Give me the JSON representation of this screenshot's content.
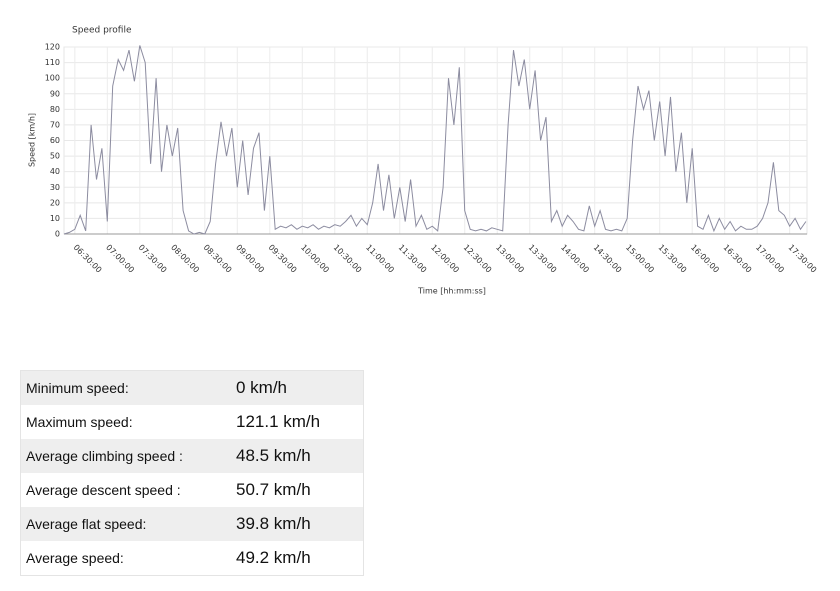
{
  "chart_data": {
    "type": "line",
    "title": "Speed profile",
    "ylabel": "Speed [km/h]",
    "xlabel": "Time [hh:mm:ss]",
    "color": "#8c8ca0",
    "grid": true,
    "xlim": [
      "06:20:00",
      "17:46:00"
    ],
    "xticks": [
      "06:30:00",
      "07:00:00",
      "07:30:00",
      "08:00:00",
      "08:30:00",
      "09:00:00",
      "09:30:00",
      "10:00:00",
      "10:30:00",
      "11:00:00",
      "11:30:00",
      "12:00:00",
      "12:30:00",
      "13:00:00",
      "13:30:00",
      "14:00:00",
      "14:30:00",
      "15:00:00",
      "15:30:00",
      "16:00:00",
      "16:30:00",
      "17:00:00",
      "17:30:00"
    ],
    "ylim": [
      0,
      120
    ],
    "yticks": [
      0,
      10,
      20,
      30,
      40,
      50,
      60,
      70,
      80,
      90,
      100,
      110,
      120
    ],
    "x": [
      "06:20:00",
      "06:25:00",
      "06:30:00",
      "06:35:00",
      "06:40:00",
      "06:45:00",
      "06:50:00",
      "06:55:00",
      "07:00:00",
      "07:05:00",
      "07:10:00",
      "07:15:00",
      "07:20:00",
      "07:25:00",
      "07:30:00",
      "07:35:00",
      "07:40:00",
      "07:45:00",
      "07:50:00",
      "07:55:00",
      "08:00:00",
      "08:05:00",
      "08:10:00",
      "08:15:00",
      "08:20:00",
      "08:25:00",
      "08:30:00",
      "08:35:00",
      "08:40:00",
      "08:45:00",
      "08:50:00",
      "08:55:00",
      "09:00:00",
      "09:05:00",
      "09:10:00",
      "09:15:00",
      "09:20:00",
      "09:25:00",
      "09:30:00",
      "09:35:00",
      "09:40:00",
      "09:45:00",
      "09:50:00",
      "09:55:00",
      "10:00:00",
      "10:05:00",
      "10:10:00",
      "10:15:00",
      "10:20:00",
      "10:25:00",
      "10:30:00",
      "10:35:00",
      "10:40:00",
      "10:45:00",
      "10:50:00",
      "10:55:00",
      "11:00:00",
      "11:05:00",
      "11:10:00",
      "11:15:00",
      "11:20:00",
      "11:25:00",
      "11:30:00",
      "11:35:00",
      "11:40:00",
      "11:45:00",
      "11:50:00",
      "11:55:00",
      "12:00:00",
      "12:05:00",
      "12:10:00",
      "12:15:00",
      "12:20:00",
      "12:25:00",
      "12:30:00",
      "12:35:00",
      "12:40:00",
      "12:45:00",
      "12:50:00",
      "12:55:00",
      "13:00:00",
      "13:05:00",
      "13:10:00",
      "13:15:00",
      "13:20:00",
      "13:25:00",
      "13:30:00",
      "13:35:00",
      "13:40:00",
      "13:45:00",
      "13:50:00",
      "13:55:00",
      "14:00:00",
      "14:05:00",
      "14:10:00",
      "14:15:00",
      "14:20:00",
      "14:25:00",
      "14:30:00",
      "14:35:00",
      "14:40:00",
      "14:45:00",
      "14:50:00",
      "14:55:00",
      "15:00:00",
      "15:05:00",
      "15:10:00",
      "15:15:00",
      "15:20:00",
      "15:25:00",
      "15:30:00",
      "15:35:00",
      "15:40:00",
      "15:45:00",
      "15:50:00",
      "15:55:00",
      "16:00:00",
      "16:05:00",
      "16:10:00",
      "16:15:00",
      "16:20:00",
      "16:25:00",
      "16:30:00",
      "16:35:00",
      "16:40:00",
      "16:45:00",
      "16:50:00",
      "16:55:00",
      "17:00:00",
      "17:05:00",
      "17:10:00",
      "17:15:00",
      "17:20:00",
      "17:25:00",
      "17:30:00",
      "17:35:00",
      "17:40:00",
      "17:45:00"
    ],
    "values": [
      0,
      1,
      3,
      12,
      2,
      70,
      35,
      55,
      8,
      95,
      112,
      105,
      118,
      98,
      121,
      110,
      45,
      100,
      40,
      70,
      50,
      68,
      15,
      2,
      0,
      1,
      0,
      8,
      45,
      72,
      50,
      68,
      30,
      60,
      25,
      55,
      65,
      15,
      50,
      3,
      5,
      4,
      6,
      3,
      5,
      4,
      6,
      3,
      5,
      4,
      6,
      5,
      8,
      12,
      5,
      10,
      6,
      20,
      45,
      15,
      38,
      10,
      30,
      8,
      35,
      5,
      12,
      3,
      5,
      2,
      30,
      100,
      70,
      107,
      15,
      3,
      2,
      3,
      2,
      4,
      3,
      2,
      70,
      118,
      95,
      112,
      80,
      105,
      60,
      75,
      8,
      15,
      5,
      12,
      8,
      3,
      2,
      18,
      5,
      15,
      3,
      2,
      3,
      2,
      10,
      60,
      95,
      80,
      92,
      60,
      85,
      50,
      88,
      40,
      65,
      20,
      55,
      5,
      3,
      12,
      2,
      10,
      3,
      8,
      2,
      5,
      3,
      3,
      5,
      10,
      20,
      46,
      15,
      12,
      5,
      10,
      3,
      8
    ]
  },
  "table": {
    "rows": [
      [
        "Minimum speed:",
        "0 km/h"
      ],
      [
        "Maximum speed:",
        "121.1 km/h"
      ],
      [
        "Average climbing speed :",
        "48.5 km/h"
      ],
      [
        "Average descent speed :",
        "50.7 km/h"
      ],
      [
        "Average flat speed:",
        "39.8 km/h"
      ],
      [
        "Average speed:",
        "49.2 km/h"
      ]
    ]
  }
}
